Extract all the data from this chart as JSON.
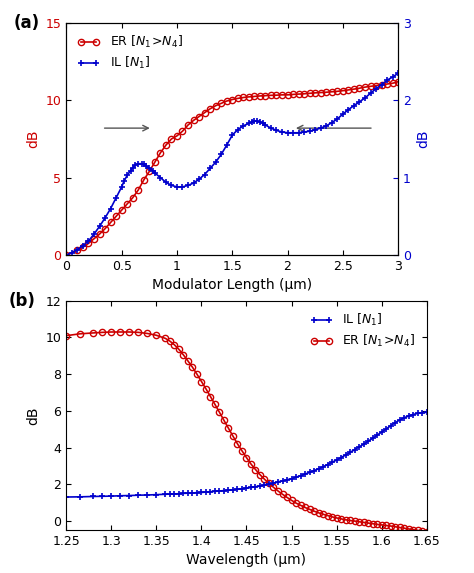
{
  "panel_a": {
    "title": "(a)",
    "xlabel": "Modulator Length (μm)",
    "ylabel_left": "dB",
    "ylabel_right": "dB",
    "xlim": [
      0,
      3
    ],
    "ylim_left": [
      0,
      15
    ],
    "ylim_right": [
      0,
      3
    ],
    "yticks_left": [
      0,
      5,
      10,
      15
    ],
    "yticks_right": [
      0,
      1,
      2,
      3
    ],
    "xticks": [
      0,
      0.5,
      1,
      1.5,
      2,
      2.5,
      3
    ],
    "er_x": [
      0.0,
      0.1,
      0.15,
      0.2,
      0.25,
      0.3,
      0.35,
      0.4,
      0.45,
      0.5,
      0.55,
      0.6,
      0.65,
      0.7,
      0.75,
      0.8,
      0.85,
      0.9,
      0.95,
      1.0,
      1.05,
      1.1,
      1.15,
      1.2,
      1.25,
      1.3,
      1.35,
      1.4,
      1.45,
      1.5,
      1.55,
      1.6,
      1.65,
      1.7,
      1.75,
      1.8,
      1.85,
      1.9,
      1.95,
      2.0,
      2.05,
      2.1,
      2.15,
      2.2,
      2.25,
      2.3,
      2.35,
      2.4,
      2.45,
      2.5,
      2.55,
      2.6,
      2.65,
      2.7,
      2.75,
      2.8,
      2.85,
      2.9,
      2.95,
      3.0
    ],
    "er_y": [
      0.0,
      0.3,
      0.5,
      0.75,
      1.05,
      1.35,
      1.7,
      2.1,
      2.5,
      2.9,
      3.3,
      3.7,
      4.2,
      4.85,
      5.4,
      6.0,
      6.6,
      7.1,
      7.5,
      7.7,
      8.0,
      8.4,
      8.7,
      8.95,
      9.2,
      9.45,
      9.65,
      9.8,
      9.95,
      10.05,
      10.12,
      10.18,
      10.22,
      10.25,
      10.28,
      10.3,
      10.32,
      10.33,
      10.35,
      10.35,
      10.38,
      10.4,
      10.42,
      10.45,
      10.48,
      10.5,
      10.52,
      10.55,
      10.58,
      10.62,
      10.67,
      10.72,
      10.78,
      10.85,
      10.9,
      10.95,
      11.0,
      11.05,
      11.1,
      11.2
    ],
    "il_x": [
      0.0,
      0.05,
      0.1,
      0.15,
      0.2,
      0.25,
      0.3,
      0.35,
      0.4,
      0.45,
      0.5,
      0.52,
      0.55,
      0.58,
      0.6,
      0.62,
      0.65,
      0.68,
      0.7,
      0.72,
      0.75,
      0.78,
      0.8,
      0.85,
      0.9,
      0.95,
      1.0,
      1.05,
      1.1,
      1.15,
      1.2,
      1.25,
      1.3,
      1.35,
      1.4,
      1.45,
      1.5,
      1.55,
      1.6,
      1.65,
      1.68,
      1.7,
      1.72,
      1.75,
      1.78,
      1.8,
      1.85,
      1.9,
      1.95,
      2.0,
      2.05,
      2.1,
      2.15,
      2.2,
      2.25,
      2.3,
      2.35,
      2.4,
      2.45,
      2.5,
      2.55,
      2.6,
      2.65,
      2.7,
      2.75,
      2.8,
      2.85,
      2.9,
      2.95,
      3.0
    ],
    "il_y": [
      0.0,
      0.03,
      0.07,
      0.12,
      0.18,
      0.27,
      0.37,
      0.48,
      0.6,
      0.74,
      0.88,
      0.95,
      1.03,
      1.09,
      1.13,
      1.16,
      1.18,
      1.18,
      1.17,
      1.15,
      1.12,
      1.09,
      1.06,
      1.0,
      0.94,
      0.9,
      0.88,
      0.88,
      0.9,
      0.93,
      0.98,
      1.04,
      1.12,
      1.2,
      1.3,
      1.42,
      1.55,
      1.62,
      1.67,
      1.7,
      1.72,
      1.73,
      1.73,
      1.72,
      1.7,
      1.68,
      1.64,
      1.61,
      1.59,
      1.58,
      1.58,
      1.58,
      1.59,
      1.6,
      1.62,
      1.64,
      1.67,
      1.71,
      1.76,
      1.82,
      1.88,
      1.93,
      1.98,
      2.03,
      2.09,
      2.15,
      2.2,
      2.26,
      2.3,
      2.35
    ],
    "er_color": "#CC0000",
    "il_color": "#0000CC"
  },
  "panel_b": {
    "title": "(b)",
    "xlabel": "Wavelength (μm)",
    "ylabel": "dB",
    "xlim": [
      1.25,
      1.65
    ],
    "ylim": [
      -0.5,
      12
    ],
    "yticks": [
      0,
      2,
      4,
      6,
      8,
      10,
      12
    ],
    "xticks": [
      1.25,
      1.3,
      1.35,
      1.4,
      1.45,
      1.5,
      1.55,
      1.6,
      1.65
    ],
    "er_x": [
      1.25,
      1.265,
      1.28,
      1.29,
      1.3,
      1.31,
      1.32,
      1.33,
      1.34,
      1.35,
      1.36,
      1.365,
      1.37,
      1.375,
      1.38,
      1.385,
      1.39,
      1.395,
      1.4,
      1.405,
      1.41,
      1.415,
      1.42,
      1.425,
      1.43,
      1.435,
      1.44,
      1.445,
      1.45,
      1.455,
      1.46,
      1.465,
      1.47,
      1.475,
      1.48,
      1.485,
      1.49,
      1.495,
      1.5,
      1.505,
      1.51,
      1.515,
      1.52,
      1.525,
      1.53,
      1.535,
      1.54,
      1.545,
      1.55,
      1.555,
      1.56,
      1.565,
      1.57,
      1.575,
      1.58,
      1.585,
      1.59,
      1.595,
      1.6,
      1.605,
      1.61,
      1.615,
      1.62,
      1.625,
      1.63,
      1.635,
      1.64,
      1.645,
      1.65
    ],
    "er_y": [
      10.1,
      10.2,
      10.25,
      10.28,
      10.3,
      10.3,
      10.3,
      10.28,
      10.22,
      10.12,
      9.95,
      9.8,
      9.6,
      9.35,
      9.05,
      8.72,
      8.38,
      8.0,
      7.6,
      7.2,
      6.78,
      6.35,
      5.92,
      5.48,
      5.05,
      4.62,
      4.2,
      3.82,
      3.45,
      3.1,
      2.8,
      2.52,
      2.27,
      2.04,
      1.83,
      1.63,
      1.45,
      1.28,
      1.12,
      0.97,
      0.85,
      0.73,
      0.63,
      0.53,
      0.44,
      0.36,
      0.29,
      0.22,
      0.16,
      0.11,
      0.06,
      0.02,
      -0.01,
      -0.05,
      -0.08,
      -0.12,
      -0.15,
      -0.19,
      -0.22,
      -0.25,
      -0.28,
      -0.32,
      -0.36,
      -0.4,
      -0.44,
      -0.48,
      -0.52,
      -0.56,
      -0.6
    ],
    "il_x": [
      1.25,
      1.265,
      1.28,
      1.29,
      1.3,
      1.31,
      1.32,
      1.33,
      1.34,
      1.35,
      1.36,
      1.365,
      1.37,
      1.375,
      1.38,
      1.385,
      1.39,
      1.395,
      1.4,
      1.405,
      1.41,
      1.415,
      1.42,
      1.425,
      1.43,
      1.435,
      1.44,
      1.445,
      1.45,
      1.455,
      1.46,
      1.465,
      1.47,
      1.475,
      1.48,
      1.485,
      1.49,
      1.495,
      1.5,
      1.505,
      1.51,
      1.515,
      1.52,
      1.525,
      1.53,
      1.535,
      1.54,
      1.545,
      1.55,
      1.555,
      1.56,
      1.565,
      1.57,
      1.575,
      1.58,
      1.585,
      1.59,
      1.595,
      1.6,
      1.605,
      1.61,
      1.615,
      1.62,
      1.625,
      1.63,
      1.635,
      1.64,
      1.645,
      1.65
    ],
    "il_y": [
      1.3,
      1.31,
      1.33,
      1.34,
      1.35,
      1.37,
      1.38,
      1.4,
      1.41,
      1.43,
      1.45,
      1.46,
      1.47,
      1.48,
      1.5,
      1.51,
      1.52,
      1.54,
      1.55,
      1.57,
      1.59,
      1.61,
      1.63,
      1.65,
      1.67,
      1.69,
      1.72,
      1.75,
      1.78,
      1.82,
      1.86,
      1.9,
      1.95,
      2.0,
      2.06,
      2.12,
      2.18,
      2.24,
      2.3,
      2.38,
      2.46,
      2.55,
      2.64,
      2.74,
      2.84,
      2.95,
      3.07,
      3.19,
      3.32,
      3.45,
      3.59,
      3.73,
      3.88,
      4.03,
      4.18,
      4.34,
      4.5,
      4.67,
      4.84,
      5.01,
      5.18,
      5.35,
      5.5,
      5.62,
      5.72,
      5.8,
      5.86,
      5.9,
      5.92
    ],
    "er_color": "#CC0000",
    "il_color": "#0000CC"
  },
  "bg_color": "#ffffff",
  "plot_bg": "#ffffff",
  "font_size": 10
}
